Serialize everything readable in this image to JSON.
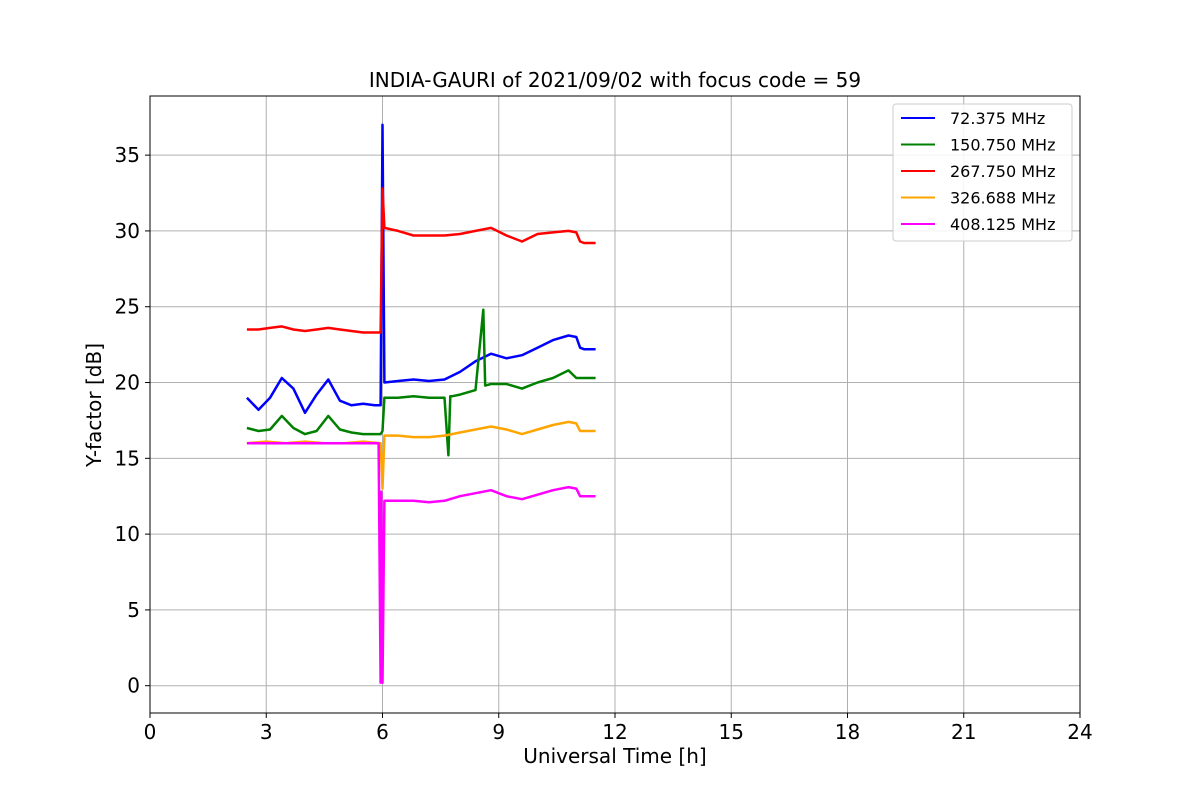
{
  "chart_data": {
    "type": "line",
    "title": "INDIA-GAURI of 2021/09/02 with focus code = 59",
    "xlabel": "Universal Time [h]",
    "ylabel": "Y-factor [dB]",
    "xlim": [
      0,
      24
    ],
    "ylim": [
      -1.8,
      38.9
    ],
    "xticks": [
      0,
      3,
      6,
      9,
      12,
      15,
      18,
      21,
      24
    ],
    "yticks": [
      0,
      5,
      10,
      15,
      20,
      25,
      30,
      35
    ],
    "grid": true,
    "legend_position": "top-right",
    "series": [
      {
        "name": " 72.375 MHz",
        "color": "#0000ff",
        "x": [
          2.5,
          2.8,
          3.1,
          3.4,
          3.7,
          4.0,
          4.3,
          4.6,
          4.9,
          5.2,
          5.5,
          5.8,
          5.95,
          6.0,
          6.05,
          6.4,
          6.8,
          7.2,
          7.6,
          8.0,
          8.4,
          8.8,
          9.2,
          9.6,
          10.0,
          10.4,
          10.8,
          11.0,
          11.1,
          11.2,
          11.5
        ],
        "y": [
          19.0,
          18.2,
          19.0,
          20.3,
          19.6,
          18.0,
          19.2,
          20.2,
          18.8,
          18.5,
          18.6,
          18.5,
          18.5,
          37.0,
          20.0,
          20.1,
          20.2,
          20.1,
          20.2,
          20.7,
          21.4,
          21.9,
          21.6,
          21.8,
          22.3,
          22.8,
          23.1,
          23.0,
          22.3,
          22.2,
          22.2
        ]
      },
      {
        "name": "150.750 MHz",
        "color": "#008000",
        "x": [
          2.5,
          2.8,
          3.1,
          3.4,
          3.7,
          4.0,
          4.3,
          4.6,
          4.9,
          5.2,
          5.5,
          5.8,
          5.95,
          6.0,
          6.05,
          6.4,
          6.8,
          7.2,
          7.6,
          7.7,
          7.75,
          7.8,
          8.0,
          8.4,
          8.6,
          8.65,
          8.8,
          9.2,
          9.6,
          10.0,
          10.4,
          10.8,
          11.0,
          11.2,
          11.5
        ],
        "y": [
          17.0,
          16.8,
          16.9,
          17.8,
          17.0,
          16.6,
          16.8,
          17.8,
          16.9,
          16.7,
          16.6,
          16.6,
          16.6,
          16.8,
          19.0,
          19.0,
          19.1,
          19.0,
          19.0,
          15.2,
          19.1,
          19.1,
          19.2,
          19.5,
          24.8,
          19.8,
          19.9,
          19.9,
          19.6,
          20.0,
          20.3,
          20.8,
          20.3,
          20.3,
          20.3
        ]
      },
      {
        "name": "267.750 MHz",
        "color": "#ff0000",
        "x": [
          2.5,
          2.8,
          3.1,
          3.4,
          3.7,
          4.0,
          4.3,
          4.6,
          4.9,
          5.2,
          5.5,
          5.8,
          5.95,
          6.0,
          6.05,
          6.4,
          6.8,
          7.2,
          7.6,
          8.0,
          8.4,
          8.8,
          9.2,
          9.6,
          10.0,
          10.4,
          10.8,
          11.0,
          11.1,
          11.2,
          11.5
        ],
        "y": [
          23.5,
          23.5,
          23.6,
          23.7,
          23.5,
          23.4,
          23.5,
          23.6,
          23.5,
          23.4,
          23.3,
          23.3,
          23.3,
          32.8,
          30.2,
          30.0,
          29.7,
          29.7,
          29.7,
          29.8,
          30.0,
          30.2,
          29.7,
          29.3,
          29.8,
          29.9,
          30.0,
          29.9,
          29.3,
          29.2,
          29.2
        ]
      },
      {
        "name": "326.688 MHz",
        "color": "#ffa500",
        "x": [
          2.5,
          3.0,
          3.5,
          4.0,
          4.5,
          5.0,
          5.5,
          5.95,
          6.0,
          6.05,
          6.4,
          6.8,
          7.2,
          7.6,
          8.0,
          8.4,
          8.8,
          9.2,
          9.6,
          10.0,
          10.4,
          10.8,
          11.0,
          11.1,
          11.2,
          11.5
        ],
        "y": [
          16.0,
          16.1,
          16.0,
          16.1,
          16.0,
          16.0,
          16.1,
          16.0,
          13.0,
          16.5,
          16.5,
          16.4,
          16.4,
          16.5,
          16.7,
          16.9,
          17.1,
          16.9,
          16.6,
          16.9,
          17.2,
          17.4,
          17.3,
          16.8,
          16.8,
          16.8
        ]
      },
      {
        "name": "408.125 MHz",
        "color": "#ff00ff",
        "x": [
          2.5,
          3.0,
          3.5,
          4.0,
          4.5,
          5.0,
          5.5,
          5.9,
          5.95,
          5.97,
          6.0,
          6.05,
          6.4,
          6.8,
          7.2,
          7.6,
          8.0,
          8.4,
          8.8,
          9.2,
          9.6,
          10.0,
          10.4,
          10.8,
          11.0,
          11.1,
          11.2,
          11.5
        ],
        "y": [
          16.0,
          16.0,
          16.0,
          16.0,
          16.0,
          16.0,
          16.0,
          16.0,
          0.2,
          12.8,
          0.2,
          12.2,
          12.2,
          12.2,
          12.1,
          12.2,
          12.5,
          12.7,
          12.9,
          12.5,
          12.3,
          12.6,
          12.9,
          13.1,
          13.0,
          12.5,
          12.5,
          12.5
        ]
      }
    ]
  }
}
